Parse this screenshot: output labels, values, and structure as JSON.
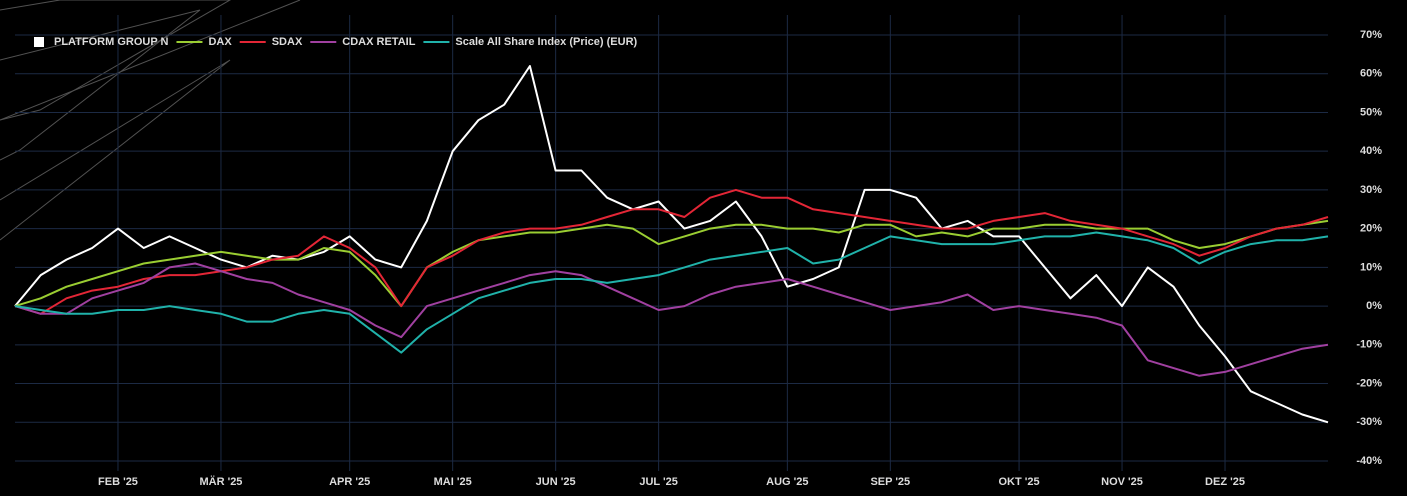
{
  "chart_data": {
    "type": "line",
    "categories": [
      null,
      null,
      null,
      null,
      "FEB '25",
      null,
      null,
      null,
      "MÄR '25",
      null,
      null,
      null,
      null,
      "APR '25",
      null,
      null,
      null,
      "MAI '25",
      null,
      null,
      null,
      "JUN '25",
      null,
      null,
      null,
      "JUL '25",
      null,
      null,
      null,
      null,
      "AUG '25",
      null,
      null,
      null,
      "SEP '25",
      null,
      null,
      null,
      null,
      "OKT '25",
      null,
      null,
      null,
      "NOV '25",
      null,
      null,
      null,
      "DEZ '25",
      null,
      null,
      null,
      null
    ],
    "series": [
      {
        "name": "PLATFORM GROUP N",
        "color": "#ffffff",
        "values": [
          0,
          8,
          12,
          15,
          20,
          15,
          18,
          15,
          12,
          10,
          13,
          12,
          14,
          18,
          12,
          10,
          22,
          40,
          48,
          52,
          62,
          35,
          35,
          28,
          25,
          27,
          20,
          22,
          27,
          18,
          5,
          7,
          10,
          30,
          30,
          28,
          20,
          22,
          18,
          18,
          10,
          2,
          8,
          0,
          10,
          5,
          -5,
          -13,
          -22,
          -25,
          -28,
          -30
        ]
      },
      {
        "name": "DAX",
        "color": "#9acd32",
        "values": [
          0,
          2,
          5,
          7,
          9,
          11,
          12,
          13,
          14,
          13,
          12,
          12,
          15,
          14,
          8,
          0,
          10,
          14,
          17,
          18,
          19,
          19,
          20,
          21,
          20,
          16,
          18,
          20,
          21,
          21,
          20,
          20,
          19,
          21,
          21,
          18,
          19,
          18,
          20,
          20,
          21,
          21,
          20,
          20,
          20,
          17,
          15,
          16,
          18,
          20,
          21,
          22
        ]
      },
      {
        "name": "SDAX",
        "color": "#e32636",
        "values": [
          0,
          -2,
          2,
          4,
          5,
          7,
          8,
          8,
          9,
          10,
          12,
          13,
          18,
          15,
          10,
          0,
          10,
          13,
          17,
          19,
          20,
          20,
          21,
          23,
          25,
          25,
          23,
          28,
          30,
          28,
          28,
          25,
          24,
          23,
          22,
          21,
          20,
          20,
          22,
          23,
          24,
          22,
          21,
          20,
          18,
          16,
          13,
          15,
          18,
          20,
          21,
          23
        ]
      },
      {
        "name": "CDAX RETAIL",
        "color": "#a040a0",
        "values": [
          0,
          -2,
          -2,
          2,
          4,
          6,
          10,
          11,
          9,
          7,
          6,
          3,
          1,
          -1,
          -5,
          -8,
          0,
          2,
          4,
          6,
          8,
          9,
          8,
          5,
          2,
          -1,
          0,
          3,
          5,
          6,
          7,
          5,
          3,
          1,
          -1,
          0,
          1,
          3,
          -1,
          0,
          -1,
          -2,
          -3,
          -5,
          -14,
          -16,
          -18,
          -17,
          -15,
          -13,
          -11,
          -10
        ]
      },
      {
        "name": "Scale All Share Index (Price) (EUR)",
        "color": "#20b2aa",
        "values": [
          0,
          -1,
          -2,
          -2,
          -1,
          -1,
          0,
          -1,
          -2,
          -4,
          -4,
          -2,
          -1,
          -2,
          -7,
          -12,
          -6,
          -2,
          2,
          4,
          6,
          7,
          7,
          6,
          7,
          8,
          10,
          12,
          13,
          14,
          15,
          11,
          12,
          15,
          18,
          17,
          16,
          16,
          16,
          17,
          18,
          18,
          19,
          18,
          17,
          15,
          11,
          14,
          16,
          17,
          17,
          18
        ]
      }
    ],
    "ylim": [
      -40,
      70
    ],
    "yticks": [
      {
        "value": -40,
        "label": "-40%"
      },
      {
        "value": -30,
        "label": "-30%"
      },
      {
        "value": -20,
        "label": "-20%"
      },
      {
        "value": -10,
        "label": "-10%"
      },
      {
        "value": 0,
        "label": "0%"
      },
      {
        "value": 10,
        "label": "10%"
      },
      {
        "value": 20,
        "label": "20%"
      },
      {
        "value": 30,
        "label": "30%"
      },
      {
        "value": 40,
        "label": "40%"
      },
      {
        "value": 50,
        "label": "50%"
      },
      {
        "value": 60,
        "label": "60%"
      },
      {
        "value": 70,
        "label": "70%"
      }
    ],
    "grid": true,
    "legend": "top-left"
  }
}
